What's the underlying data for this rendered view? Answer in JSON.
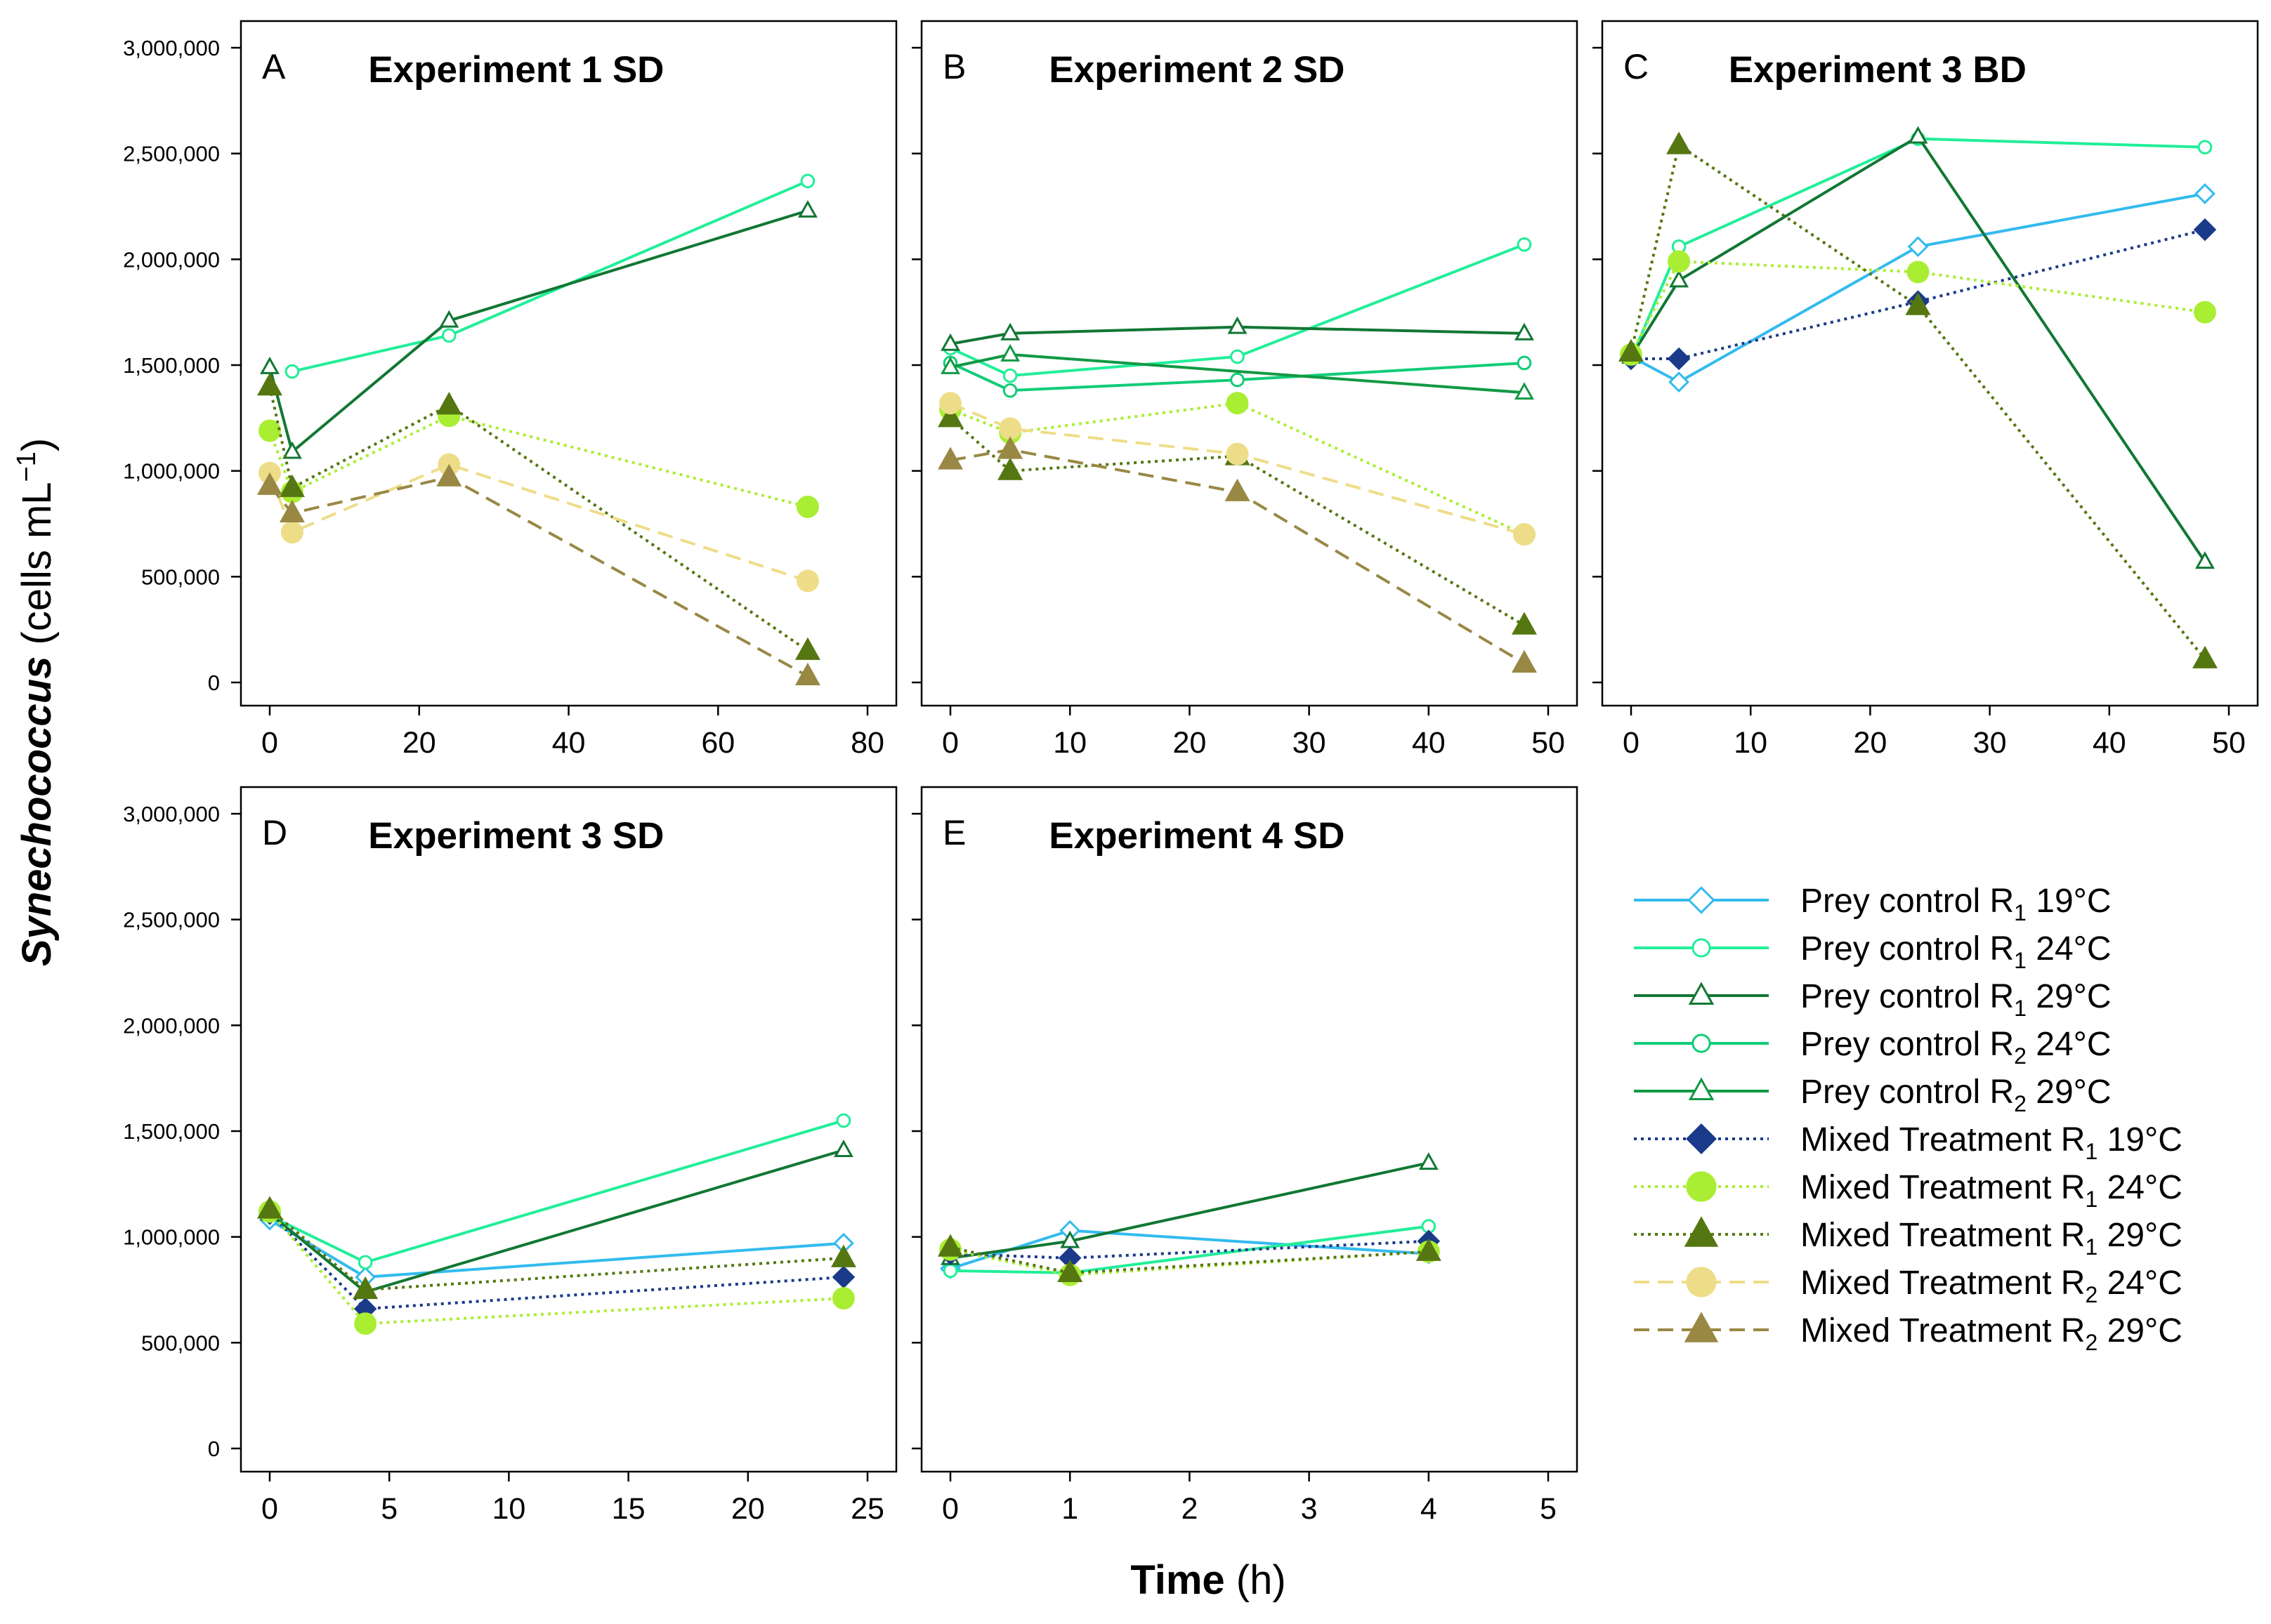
{
  "chart_data": {
    "type": "line",
    "ylabel": {
      "italic": "Synechococcus",
      "rest": " (cells mL",
      "sup": "−1",
      "close": ")"
    },
    "xlabel": {
      "bold": "Time",
      "rest": " (h)"
    },
    "ylim": [
      0,
      3000000
    ],
    "yticks": [
      "0",
      "500,000",
      "1,000,000",
      "1,500,000",
      "2,000,000",
      "2,500,000",
      "3,000,000"
    ],
    "styles": {
      "pc1_19": {
        "color": "#33bbee",
        "marker": "open-diamond",
        "dash": "solid"
      },
      "pc1_24": {
        "color": "#22ee99",
        "marker": "open-circle",
        "dash": "solid"
      },
      "pc1_29": {
        "color": "#117733",
        "marker": "open-triangle",
        "dash": "solid"
      },
      "pc2_24": {
        "color": "#11cc77",
        "marker": "open-circle",
        "dash": "solid"
      },
      "pc2_29": {
        "color": "#119944",
        "marker": "open-triangle",
        "dash": "solid"
      },
      "mt1_19": {
        "color": "#1a3a8a",
        "marker": "filled-diamond",
        "dash": "dotted"
      },
      "mt1_24": {
        "color": "#aaee33",
        "marker": "filled-circle",
        "dash": "dotted"
      },
      "mt1_29": {
        "color": "#557711",
        "marker": "filled-triangle",
        "dash": "dotted"
      },
      "mt2_24": {
        "color": "#eedd88",
        "marker": "filled-circle",
        "dash": "dashed"
      },
      "mt2_29": {
        "color": "#998844",
        "marker": "filled-triangle",
        "dash": "dashed"
      }
    },
    "legend": [
      {
        "key": "pc1_19",
        "main": "Prey control R",
        "sub": "1",
        "tail": " 19°C"
      },
      {
        "key": "pc1_24",
        "main": "Prey control R",
        "sub": "1",
        "tail": " 24°C"
      },
      {
        "key": "pc1_29",
        "main": "Prey control R",
        "sub": "1",
        "tail": " 29°C"
      },
      {
        "key": "pc2_24",
        "main": "Prey control R",
        "sub": "2",
        "tail": " 24°C"
      },
      {
        "key": "pc2_29",
        "main": "Prey control R",
        "sub": "2",
        "tail": " 29°C"
      },
      {
        "key": "mt1_19",
        "main": "Mixed Treatment R",
        "sub": "1",
        "tail": " 19°C"
      },
      {
        "key": "mt1_24",
        "main": "Mixed Treatment R",
        "sub": "1",
        "tail": " 24°C"
      },
      {
        "key": "mt1_29",
        "main": "Mixed Treatment R",
        "sub": "1",
        "tail": " 29°C"
      },
      {
        "key": "mt2_24",
        "main": "Mixed Treatment R",
        "sub": "2",
        "tail": " 24°C"
      },
      {
        "key": "mt2_29",
        "main": "Mixed Treatment R",
        "sub": "2",
        "tail": " 29°C"
      }
    ],
    "panels": [
      {
        "letter": "A",
        "title": "Experiment 1 SD",
        "xlim": [
          0,
          80
        ],
        "xticks": [
          0,
          20,
          40,
          60,
          80
        ],
        "show_yticks": true,
        "show_xticks": true,
        "series": [
          {
            "key": "pc1_24",
            "x": [
              3,
              24,
              72
            ],
            "y": [
              1470000,
              1640000,
              2370000
            ]
          },
          {
            "key": "pc1_29",
            "x": [
              0,
              3,
              24,
              72
            ],
            "y": [
              1490000,
              1090000,
              1710000,
              2230000
            ]
          },
          {
            "key": "mt1_24",
            "x": [
              0,
              3,
              24,
              72
            ],
            "y": [
              1190000,
              900000,
              1260000,
              830000
            ]
          },
          {
            "key": "mt1_29",
            "x": [
              0,
              3,
              24,
              72
            ],
            "y": [
              1400000,
              920000,
              1310000,
              150000
            ]
          },
          {
            "key": "mt2_24",
            "x": [
              0,
              3,
              24,
              72
            ],
            "y": [
              990000,
              710000,
              1030000,
              480000
            ]
          },
          {
            "key": "mt2_29",
            "x": [
              0,
              3,
              24,
              72
            ],
            "y": [
              930000,
              800000,
              970000,
              30000
            ]
          }
        ]
      },
      {
        "letter": "B",
        "title": "Experiment 2 SD",
        "xlim": [
          0,
          50
        ],
        "xticks": [
          0,
          10,
          20,
          30,
          40,
          50
        ],
        "show_yticks": false,
        "show_xticks": true,
        "series": [
          {
            "key": "pc1_24",
            "x": [
              0,
              5,
              24,
              48
            ],
            "y": [
              1580000,
              1450000,
              1540000,
              2070000
            ]
          },
          {
            "key": "pc1_29",
            "x": [
              0,
              5,
              24,
              48
            ],
            "y": [
              1600000,
              1650000,
              1680000,
              1650000
            ]
          },
          {
            "key": "pc2_24",
            "x": [
              0,
              5,
              24,
              48
            ],
            "y": [
              1510000,
              1380000,
              1430000,
              1510000
            ]
          },
          {
            "key": "pc2_29",
            "x": [
              0,
              5,
              48
            ],
            "y": [
              1490000,
              1550000,
              1370000
            ]
          },
          {
            "key": "mt1_24",
            "x": [
              0,
              5,
              24,
              48
            ],
            "y": [
              1290000,
              1180000,
              1320000,
              700000
            ]
          },
          {
            "key": "mt1_29",
            "x": [
              0,
              5,
              24,
              48
            ],
            "y": [
              1250000,
              1000000,
              1070000,
              270000
            ]
          },
          {
            "key": "mt2_24",
            "x": [
              0,
              5,
              24,
              48
            ],
            "y": [
              1320000,
              1200000,
              1080000,
              700000
            ]
          },
          {
            "key": "mt2_29",
            "x": [
              0,
              5,
              24,
              48
            ],
            "y": [
              1050000,
              1100000,
              900000,
              90000
            ]
          }
        ]
      },
      {
        "letter": "C",
        "title": "Experiment 3 BD",
        "xlim": [
          0,
          50
        ],
        "xticks": [
          0,
          10,
          20,
          30,
          40,
          50
        ],
        "show_yticks": false,
        "show_xticks": true,
        "series": [
          {
            "key": "pc1_19",
            "x": [
              0,
              4,
              24,
              48
            ],
            "y": [
              1540000,
              1420000,
              2060000,
              2310000
            ]
          },
          {
            "key": "pc1_24",
            "x": [
              0,
              4,
              24,
              48
            ],
            "y": [
              1530000,
              2060000,
              2570000,
              2530000
            ]
          },
          {
            "key": "pc1_29",
            "x": [
              0,
              4,
              24,
              48
            ],
            "y": [
              1540000,
              1900000,
              2580000,
              570000
            ]
          },
          {
            "key": "mt1_19",
            "x": [
              0,
              4,
              24,
              48
            ],
            "y": [
              1530000,
              1530000,
              1800000,
              2140000
            ]
          },
          {
            "key": "mt1_24",
            "x": [
              0,
              4,
              24,
              48
            ],
            "y": [
              1550000,
              1990000,
              1940000,
              1750000
            ]
          },
          {
            "key": "mt1_29",
            "x": [
              0,
              4,
              24,
              48
            ],
            "y": [
              1560000,
              2540000,
              1780000,
              110000
            ]
          }
        ]
      },
      {
        "letter": "D",
        "title": "Experiment 3 SD",
        "xlim": [
          0,
          25
        ],
        "xticks": [
          0,
          5,
          10,
          15,
          20,
          25
        ],
        "show_yticks": true,
        "show_xticks": true,
        "series": [
          {
            "key": "pc1_19",
            "x": [
              0,
              4,
              24
            ],
            "y": [
              1080000,
              810000,
              970000
            ]
          },
          {
            "key": "pc1_24",
            "x": [
              0,
              4,
              24
            ],
            "y": [
              1100000,
              880000,
              1550000
            ]
          },
          {
            "key": "pc1_29",
            "x": [
              0,
              4,
              24
            ],
            "y": [
              1110000,
              740000,
              1410000
            ]
          },
          {
            "key": "mt1_19",
            "x": [
              0,
              4,
              24
            ],
            "y": [
              1110000,
              660000,
              810000
            ]
          },
          {
            "key": "mt1_24",
            "x": [
              0,
              4,
              24
            ],
            "y": [
              1120000,
              590000,
              710000
            ]
          },
          {
            "key": "mt1_29",
            "x": [
              0,
              4,
              24
            ],
            "y": [
              1130000,
              750000,
              900000
            ]
          }
        ]
      },
      {
        "letter": "E",
        "title": "Experiment 4 SD",
        "xlim": [
          0,
          5
        ],
        "xticks": [
          0,
          1,
          2,
          3,
          4,
          5
        ],
        "show_yticks": false,
        "show_xticks": true,
        "series": [
          {
            "key": "pc1_19",
            "x": [
              0,
              1,
              4
            ],
            "y": [
              850000,
              1030000,
              920000
            ]
          },
          {
            "key": "pc1_24",
            "x": [
              0,
              1,
              4
            ],
            "y": [
              840000,
              830000,
              1050000
            ]
          },
          {
            "key": "pc1_29",
            "x": [
              0,
              1,
              4
            ],
            "y": [
              900000,
              980000,
              1350000
            ]
          },
          {
            "key": "mt1_19",
            "x": [
              0,
              1,
              4
            ],
            "y": [
              920000,
              900000,
              980000
            ]
          },
          {
            "key": "mt1_24",
            "x": [
              0,
              1,
              4
            ],
            "y": [
              940000,
              820000,
              930000
            ]
          },
          {
            "key": "mt1_29",
            "x": [
              0,
              1,
              4
            ],
            "y": [
              950000,
              830000,
              930000
            ]
          }
        ]
      }
    ]
  }
}
